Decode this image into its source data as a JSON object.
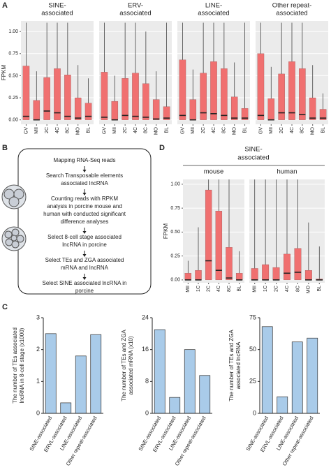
{
  "panel_labels": [
    "A",
    "B",
    "C",
    "D"
  ],
  "flowchart": {
    "steps": [
      [
        "Mapping RNA-Seq reads"
      ],
      [
        "Search Transposable elements",
        "associated lncRNA"
      ],
      [
        "Counting reads with RPKM",
        "analysis in porcine mouse and",
        "human with conducted significant",
        "difference analyses"
      ],
      [
        "Select 8-cell stage associated",
        "lncRNA in porcine"
      ],
      [
        "Select TEs and ZGA associated",
        "mRNA and lncRNA"
      ],
      [
        "Select SINE associated lncRNA in",
        "porcine"
      ]
    ]
  },
  "panel_d_header": [
    "SINE-",
    "associated"
  ],
  "chart_data": [
    {
      "type": "box",
      "title": [
        "SINE-",
        "associated"
      ],
      "ylabel": "FPKM",
      "categories": [
        "GV",
        "MII",
        "2C",
        "4C",
        "8C",
        "MO",
        "BL"
      ],
      "q1": [
        0,
        0,
        0,
        0,
        0,
        0,
        0
      ],
      "median": [
        0.04,
        0,
        0.1,
        0.08,
        0.04,
        0.02,
        0.04
      ],
      "q3": [
        0.61,
        0.22,
        0.48,
        0.58,
        0.51,
        0.25,
        0.19
      ],
      "whisker": [
        1.1,
        0.55,
        1.1,
        1.1,
        1.1,
        0.62,
        0.47
      ],
      "color": "#f07070",
      "ylim": [
        -0.05,
        1.12
      ],
      "yticks": [
        {
          "value": 0,
          "label": "0.00"
        },
        {
          "value": 0.25,
          "label": "0.25"
        },
        {
          "value": 0.5,
          "label": "0.50"
        },
        {
          "value": 0.75,
          "label": "0.75"
        },
        {
          "value": 1,
          "label": "1.00"
        }
      ],
      "grid": true
    },
    {
      "type": "box",
      "title": [
        "ERV-",
        "associated"
      ],
      "categories": [
        "GV",
        "MII",
        "2C",
        "4C",
        "8C",
        "MO",
        "BL"
      ],
      "q1": [
        0,
        0,
        0,
        0,
        0,
        0,
        0
      ],
      "median": [
        0.03,
        0,
        0.05,
        0.04,
        0.03,
        0.01,
        0.02
      ],
      "q3": [
        0.54,
        0.21,
        0.47,
        0.53,
        0.41,
        0.23,
        0.15
      ],
      "whisker": [
        1.1,
        0.5,
        1.1,
        1.1,
        1.0,
        0.55,
        1.1
      ],
      "color": "#f07070",
      "ylim": [
        -0.05,
        1.12
      ],
      "yticks": [
        0,
        0.25,
        0.5,
        0.75,
        1
      ],
      "grid": true
    },
    {
      "type": "box",
      "title": [
        "LINE-",
        "associated"
      ],
      "categories": [
        "GV",
        "MII",
        "2C",
        "4C",
        "8C",
        "MO",
        "BL"
      ],
      "q1": [
        0,
        0,
        0,
        0,
        0,
        0,
        0
      ],
      "median": [
        0.05,
        0,
        0.08,
        0.07,
        0.05,
        0.02,
        0.02
      ],
      "q3": [
        0.68,
        0.23,
        0.53,
        0.66,
        0.58,
        0.26,
        0.13
      ],
      "whisker": [
        1.1,
        0.57,
        1.1,
        1.1,
        1.1,
        0.65,
        1.1
      ],
      "color": "#f07070",
      "ylim": [
        -0.05,
        1.12
      ],
      "yticks": [
        0,
        0.25,
        0.5,
        0.75,
        1
      ],
      "grid": true
    },
    {
      "type": "box",
      "title": [
        "Other repeat-",
        "associated"
      ],
      "categories": [
        "GV",
        "MII",
        "2C",
        "4C",
        "8C",
        "MO",
        "BL"
      ],
      "q1": [
        0,
        0,
        0,
        0,
        0,
        0,
        0
      ],
      "median": [
        0.05,
        0,
        0.08,
        0.08,
        0.06,
        0.02,
        0.02
      ],
      "q3": [
        0.75,
        0.24,
        0.52,
        0.66,
        0.58,
        0.25,
        0.12
      ],
      "whisker": [
        1.1,
        0.6,
        1.1,
        1.1,
        1.1,
        0.62,
        0.3
      ],
      "color": "#f07070",
      "ylim": [
        -0.05,
        1.12
      ],
      "yticks": [
        0,
        0.25,
        0.5,
        0.75,
        1
      ],
      "grid": true
    },
    {
      "type": "bar",
      "ylabel": [
        "The number of TEs associated",
        "lncRNA in 8-cell stage (x1000)"
      ],
      "categories": [
        "SINE-associated",
        "ERVL-associated",
        "LINE-associated",
        "Other repeat-associated"
      ],
      "values": [
        2.5,
        0.33,
        1.8,
        2.47
      ],
      "color": "#a9cbe9",
      "ylim": [
        0,
        3
      ],
      "yticks": [
        0,
        1,
        2,
        3
      ]
    },
    {
      "type": "bar",
      "ylabel": [
        "The number of TEs and ZGA",
        "associated mRNA (x10)"
      ],
      "categories": [
        "SINE-associated",
        "ERVL-associated",
        "LINE-associated",
        "Other repeat-associated"
      ],
      "values": [
        21,
        4,
        16,
        9.5
      ],
      "color": "#a9cbe9",
      "ylim": [
        0,
        24
      ],
      "yticks": [
        0,
        8,
        16,
        24
      ]
    },
    {
      "type": "bar",
      "ylabel": [
        "The number of TEs and ZGA",
        "associated lncRNA"
      ],
      "categories": [
        "SINE-associated",
        "ERVL-associated",
        "LINE-associated",
        "Other repeat-associated"
      ],
      "values": [
        68,
        13,
        56,
        59
      ],
      "color": "#a9cbe9",
      "ylim": [
        0,
        75
      ],
      "yticks": [
        0,
        25,
        50,
        75
      ]
    },
    {
      "type": "box",
      "title": [
        "mouse"
      ],
      "ylabel": "FPKM",
      "categories": [
        "MII",
        "1C",
        "2C",
        "4C",
        "8C",
        "BL"
      ],
      "q1": [
        0,
        0,
        0,
        0,
        0,
        0
      ],
      "median": [
        0,
        0,
        0.2,
        0.1,
        0.02,
        0
      ],
      "q3": [
        0.07,
        0.1,
        0.94,
        0.72,
        0.34,
        0.07
      ],
      "whisker": [
        0.2,
        0.55,
        1.05,
        1.05,
        1.05,
        0.3
      ],
      "color": "#f07070",
      "ylim": [
        -0.03,
        1.05
      ],
      "yticks": [
        {
          "value": 0,
          "label": "0.00"
        },
        {
          "value": 0.25,
          "label": "0.25"
        },
        {
          "value": 0.5,
          "label": "0.50"
        },
        {
          "value": 0.75,
          "label": "0.75"
        },
        {
          "value": 1,
          "label": "1.00"
        }
      ],
      "grid": true
    },
    {
      "type": "box",
      "title": [
        "human"
      ],
      "categories": [
        "MII",
        "1C",
        "2C",
        "4C",
        "8C",
        "MO",
        "BL"
      ],
      "q1": [
        0,
        0,
        0,
        0,
        0,
        0,
        0
      ],
      "median": [
        0,
        0,
        0,
        0.07,
        0.08,
        0,
        0
      ],
      "q3": [
        0.12,
        0.16,
        0.13,
        0.27,
        0.33,
        0.1,
        0.01
      ],
      "whisker": [
        1.05,
        1.05,
        1.05,
        1.05,
        1.05,
        0.6,
        0.35
      ],
      "color": "#f07070",
      "ylim": [
        -0.03,
        1.05
      ],
      "yticks": [
        0,
        0.25,
        0.5,
        0.75,
        1
      ],
      "grid": true
    }
  ]
}
